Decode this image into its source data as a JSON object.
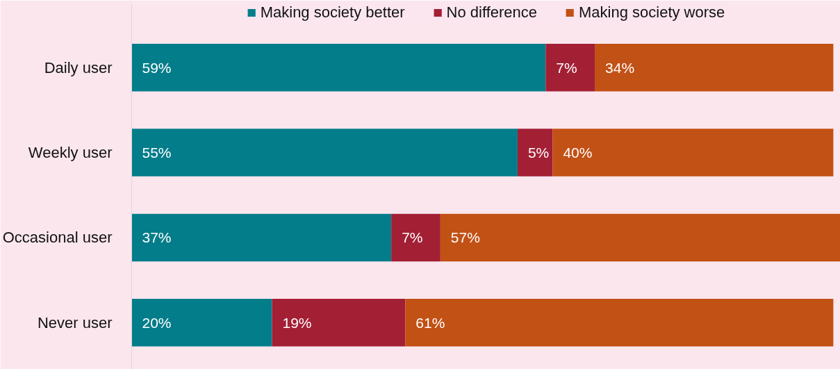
{
  "chart_data": {
    "type": "bar",
    "orientation": "horizontal",
    "stacked": true,
    "legend": "top",
    "grid": false,
    "tick_labels": "y",
    "categories": [
      "Daily user",
      "Weekly user",
      "Occasional user",
      "Never user"
    ],
    "series": [
      {
        "name": "Making society better",
        "color": "#047d8a",
        "values": [
          59,
          55,
          37,
          20
        ],
        "value_labels": [
          "59%",
          "55%",
          "37%",
          "20%"
        ]
      },
      {
        "name": "No difference",
        "color": "#a31f34",
        "values": [
          7,
          5,
          7,
          19
        ],
        "value_labels": [
          "7%",
          "5%",
          "7%",
          "19%"
        ]
      },
      {
        "name": "Making society worse",
        "color": "#c25115",
        "values": [
          34,
          40,
          57,
          61
        ],
        "value_labels": [
          "34%",
          "40%",
          "57%",
          "61%"
        ]
      }
    ]
  }
}
